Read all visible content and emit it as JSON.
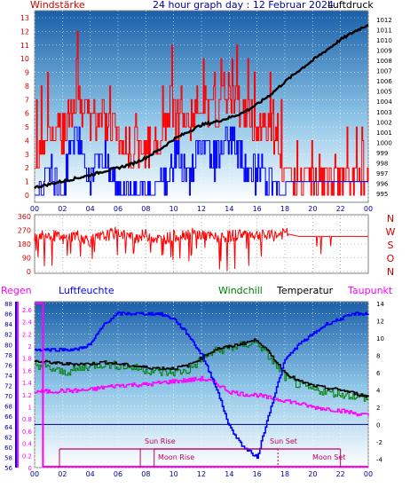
{
  "panel1": {
    "title": "24 hour graph day : 12 Februar 2024",
    "left_label": "Windstärke",
    "right_label": "Luftdruck",
    "left_ticks": [
      "0",
      "1",
      "2",
      "3",
      "4",
      "5",
      "6",
      "7",
      "8",
      "9",
      "10",
      "11",
      "12",
      "13"
    ],
    "right_ticks": [
      "995",
      "996",
      "997",
      "998",
      "999",
      "1000",
      "1001",
      "1002",
      "1003",
      "1004",
      "1005",
      "1006",
      "1007",
      "1008",
      "1009",
      "1010",
      "1011",
      "1012"
    ],
    "x_ticks": [
      "00",
      "02",
      "04",
      "06",
      "08",
      "10",
      "12",
      "14",
      "16",
      "18",
      "20",
      "22",
      "00"
    ]
  },
  "panel2": {
    "left_ticks": [
      "0",
      "90",
      "180",
      "270",
      "360"
    ],
    "right_letters": [
      "N",
      "W",
      "S",
      "O",
      "N"
    ]
  },
  "panel3": {
    "labels": {
      "regen": "Regen",
      "luftfeuchte": "Luftfeuchte",
      "windchill": "Windchill",
      "temperatur": "Temperatur",
      "taupunkt": "Taupunkt"
    },
    "rain_ticks": [
      "0",
      "0.2",
      "0.4",
      "0.6",
      "0.8",
      "1",
      "1.2",
      "1.4",
      "1.6",
      "1.8",
      "2",
      "2.2",
      "2.4",
      "2.6"
    ],
    "humidity_ticks": [
      "56",
      "58",
      "60",
      "62",
      "64",
      "66",
      "68",
      "70",
      "72",
      "74",
      "76",
      "78",
      "80",
      "82",
      "84",
      "86",
      "88"
    ],
    "temp_ticks": [
      "-4",
      "-2",
      "0",
      "2",
      "4",
      "6",
      "8",
      "10",
      "12",
      "14"
    ],
    "x_ticks": [
      "00",
      "02",
      "04",
      "06",
      "08",
      "10",
      "12",
      "14",
      "16",
      "18",
      "20",
      "22",
      "00"
    ],
    "annotations": {
      "sun_rise": "Sun Rise",
      "sun_set": "Sun Set",
      "moon_rise": "Moon Rise",
      "moon_set": "Moon Set"
    }
  },
  "colors": {
    "wind_speed": "#ff0000",
    "wind_gust_low": "#0000ff",
    "pressure": "#000000",
    "humidity": "#0000ff",
    "windchill": "#008000",
    "temperature": "#000000",
    "dewpoint": "#ff00ff",
    "rain": "#ff00ff",
    "sun_moon": "#c00060",
    "axis_text": "#0000a0",
    "left_red": "#d00000"
  },
  "chart_data": [
    {
      "type": "line",
      "x_unit": "hour",
      "xlim": [
        0,
        24
      ],
      "series": [
        {
          "name": "Windstärke",
          "axis": "left",
          "ylim": [
            0,
            13
          ],
          "x": [
            0,
            1,
            2,
            3,
            4,
            5,
            6,
            7,
            8,
            9,
            10,
            11,
            12,
            13,
            14,
            15,
            16,
            17,
            18,
            19,
            20,
            21,
            22,
            23,
            24
          ],
          "values": [
            2,
            5,
            4,
            8,
            5,
            6,
            4,
            3,
            3,
            4,
            6,
            5,
            7,
            6,
            8,
            6,
            5,
            5,
            1,
            1,
            1,
            1,
            1,
            1,
            1
          ]
        },
        {
          "name": "Luftdruck",
          "axis": "right",
          "ylim": [
            994.5,
            1012.5
          ],
          "x": [
            0,
            1,
            2,
            3,
            4,
            5,
            6,
            7,
            8,
            9,
            10,
            11,
            12,
            13,
            14,
            15,
            16,
            17,
            18,
            19,
            20,
            21,
            22,
            23,
            24
          ],
          "values": [
            995.6,
            995.9,
            996.2,
            996.5,
            996.8,
            997.2,
            997.5,
            997.9,
            998.5,
            999.3,
            1000.3,
            1001.0,
            1001.7,
            1002.0,
            1002.4,
            1002.9,
            1003.7,
            1004.7,
            1005.9,
            1007.0,
            1008.0,
            1009.0,
            1010.0,
            1010.8,
            1011.5
          ]
        }
      ]
    },
    {
      "type": "line",
      "x_unit": "hour",
      "xlim": [
        0,
        24
      ],
      "ylim": [
        0,
        360
      ],
      "series": [
        {
          "name": "Windrichtung",
          "x": [
            0,
            1,
            2,
            3,
            4,
            5,
            6,
            7,
            8,
            9,
            10,
            11,
            12,
            13,
            14,
            15,
            16,
            17,
            18,
            19,
            20,
            21,
            22,
            23,
            24
          ],
          "values": [
            230,
            250,
            210,
            240,
            200,
            230,
            260,
            220,
            240,
            210,
            230,
            250,
            240,
            220,
            230,
            250,
            240,
            230,
            250,
            230,
            230,
            230,
            230,
            230,
            230
          ]
        }
      ]
    },
    {
      "type": "line",
      "x_unit": "hour",
      "xlim": [
        0,
        24
      ],
      "series": [
        {
          "name": "Luftfeuchte",
          "axis": "humidity",
          "ylim": [
            56,
            88
          ],
          "x": [
            0,
            1,
            2,
            3,
            4,
            5,
            6,
            7,
            8,
            9,
            10,
            11,
            12,
            13,
            14,
            15,
            16,
            17,
            18,
            19,
            20,
            21,
            22,
            23,
            24
          ],
          "values": [
            79,
            79,
            79,
            79,
            80,
            84,
            86,
            86,
            86,
            86,
            85,
            82,
            78,
            72,
            64,
            60,
            58,
            68,
            77,
            80,
            82,
            84,
            85,
            86,
            86
          ]
        },
        {
          "name": "Windchill",
          "axis": "temp",
          "ylim": [
            -5,
            14
          ],
          "x": [
            0,
            1,
            2,
            3,
            4,
            5,
            6,
            7,
            8,
            9,
            10,
            11,
            12,
            13,
            14,
            15,
            16,
            17,
            18,
            19,
            20,
            21,
            22,
            23,
            24
          ],
          "values": [
            7.0,
            6.5,
            6.0,
            6.3,
            6.8,
            7.0,
            6.8,
            6.6,
            6.3,
            6.0,
            6.0,
            6.2,
            7.5,
            8.5,
            8.8,
            9.2,
            9.5,
            7.5,
            5.5,
            4.5,
            4.0,
            3.8,
            3.5,
            3.3,
            3.0
          ]
        },
        {
          "name": "Temperatur",
          "axis": "temp",
          "ylim": [
            -5,
            14
          ],
          "x": [
            0,
            1,
            2,
            3,
            4,
            5,
            6,
            7,
            8,
            9,
            10,
            11,
            12,
            13,
            14,
            15,
            16,
            17,
            18,
            19,
            20,
            21,
            22,
            23,
            24
          ],
          "values": [
            7.3,
            7.2,
            7.0,
            7.0,
            7.0,
            7.2,
            7.0,
            6.8,
            6.6,
            6.5,
            6.5,
            6.8,
            7.7,
            8.7,
            9.0,
            9.4,
            9.8,
            8.0,
            6.0,
            5.0,
            4.5,
            4.2,
            4.0,
            3.6,
            3.2
          ]
        },
        {
          "name": "Taupunkt",
          "axis": "temp",
          "ylim": [
            -5,
            14
          ],
          "x": [
            0,
            1,
            2,
            3,
            4,
            5,
            6,
            7,
            8,
            9,
            10,
            11,
            12,
            13,
            14,
            15,
            16,
            17,
            18,
            19,
            20,
            21,
            22,
            23,
            24
          ],
          "values": [
            3.8,
            3.8,
            3.9,
            3.9,
            4.0,
            4.3,
            4.5,
            4.6,
            4.6,
            4.8,
            5.0,
            5.1,
            5.3,
            4.8,
            3.8,
            3.5,
            3.4,
            3.0,
            2.8,
            2.4,
            2.0,
            1.8,
            1.6,
            1.3,
            1.0
          ]
        },
        {
          "name": "Regen",
          "axis": "rain",
          "ylim": [
            0,
            2.7
          ],
          "x": [
            0,
            0.01,
            2,
            4,
            6,
            8,
            10,
            12,
            14,
            16,
            18,
            20,
            22,
            24
          ],
          "values": [
            2.7,
            0,
            0,
            0,
            0,
            0,
            0,
            0,
            0,
            0,
            0,
            0,
            0,
            0
          ]
        }
      ],
      "events": {
        "sun_rise_h": 7.6,
        "sun_set_h": 17.5,
        "moon_rise_h": 8.6,
        "moon_set_h": 22.0
      }
    }
  ]
}
